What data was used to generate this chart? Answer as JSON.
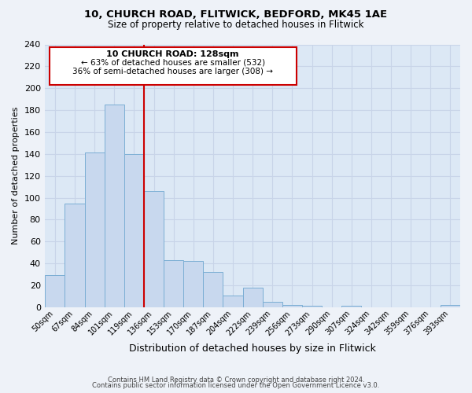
{
  "title1": "10, CHURCH ROAD, FLITWICK, BEDFORD, MK45 1AE",
  "title2": "Size of property relative to detached houses in Flitwick",
  "xlabel": "Distribution of detached houses by size in Flitwick",
  "ylabel": "Number of detached properties",
  "bin_labels": [
    "50sqm",
    "67sqm",
    "84sqm",
    "101sqm",
    "119sqm",
    "136sqm",
    "153sqm",
    "170sqm",
    "187sqm",
    "204sqm",
    "222sqm",
    "239sqm",
    "256sqm",
    "273sqm",
    "290sqm",
    "307sqm",
    "324sqm",
    "342sqm",
    "359sqm",
    "376sqm",
    "393sqm"
  ],
  "bar_heights": [
    29,
    95,
    141,
    185,
    140,
    106,
    43,
    42,
    32,
    11,
    18,
    5,
    2,
    1,
    0,
    1,
    0,
    0,
    0,
    0,
    2
  ],
  "bar_color": "#c8d8ee",
  "bar_edge_color": "#7baed4",
  "vline_color": "#cc0000",
  "annotation_title": "10 CHURCH ROAD: 128sqm",
  "annotation_line1": "← 63% of detached houses are smaller (532)",
  "annotation_line2": "36% of semi-detached houses are larger (308) →",
  "footer1": "Contains HM Land Registry data © Crown copyright and database right 2024.",
  "footer2": "Contains public sector information licensed under the Open Government Licence v3.0.",
  "ylim": [
    0,
    240
  ],
  "yticks": [
    0,
    20,
    40,
    60,
    80,
    100,
    120,
    140,
    160,
    180,
    200,
    220,
    240
  ],
  "background_color": "#eef2f8",
  "grid_color": "#c8d4e8",
  "ax_background": "#dce8f5"
}
